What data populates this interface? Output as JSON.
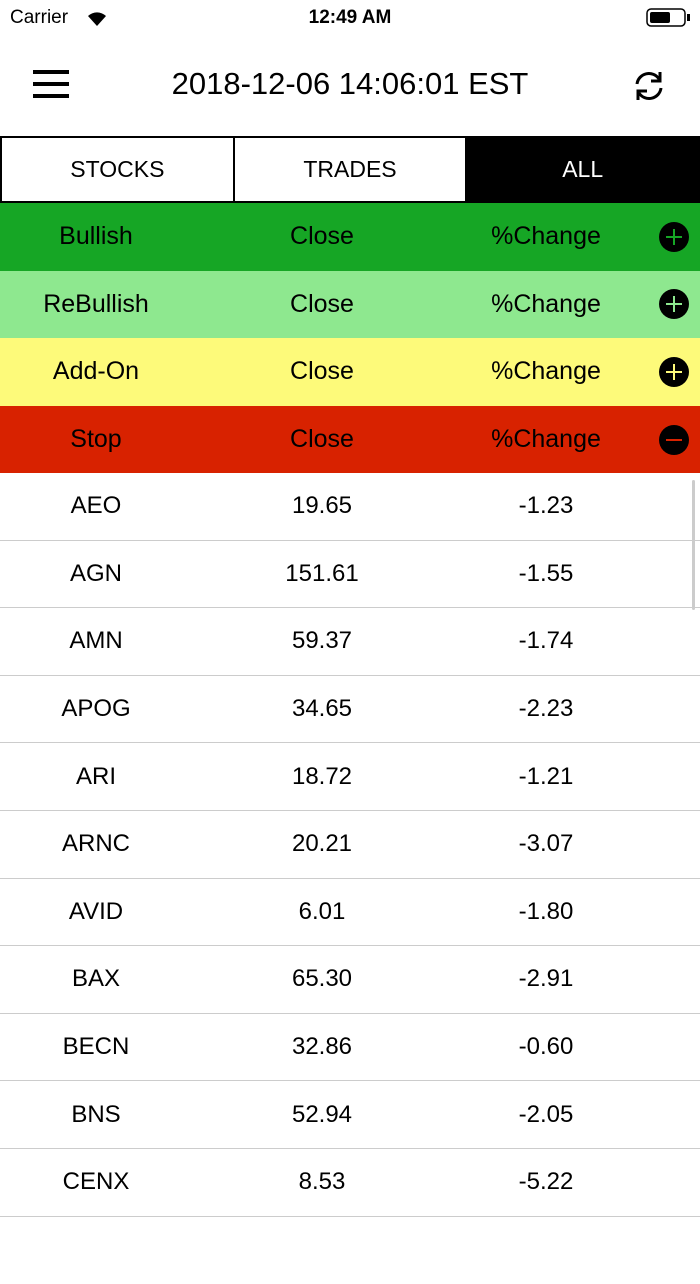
{
  "status_bar": {
    "carrier": "Carrier",
    "time": "12:49 AM"
  },
  "header": {
    "title": "2018-12-06 14:06:01 EST"
  },
  "tabs": [
    "STOCKS",
    "TRADES",
    "ALL"
  ],
  "sections": [
    {
      "label": "Bullish",
      "close": "Close",
      "change": "%Change"
    },
    {
      "label": "ReBullish",
      "close": "Close",
      "change": "%Change"
    },
    {
      "label": "Add-On",
      "close": "Close",
      "change": "%Change"
    },
    {
      "label": "Stop",
      "close": "Close",
      "change": "%Change"
    }
  ],
  "table": {
    "rows": [
      [
        "AEO",
        "19.65",
        "-1.23"
      ],
      [
        "AGN",
        "151.61",
        "-1.55"
      ],
      [
        "AMN",
        "59.37",
        "-1.74"
      ],
      [
        "APOG",
        "34.65",
        "-2.23"
      ],
      [
        "ARI",
        "18.72",
        "-1.21"
      ],
      [
        "ARNC",
        "20.21",
        "-3.07"
      ],
      [
        "AVID",
        "6.01",
        "-1.80"
      ],
      [
        "BAX",
        "65.30",
        "-2.91"
      ],
      [
        "BECN",
        "32.86",
        "-0.60"
      ],
      [
        "BNS",
        "52.94",
        "-2.05"
      ],
      [
        "CENX",
        "8.53",
        "-5.22"
      ]
    ]
  }
}
